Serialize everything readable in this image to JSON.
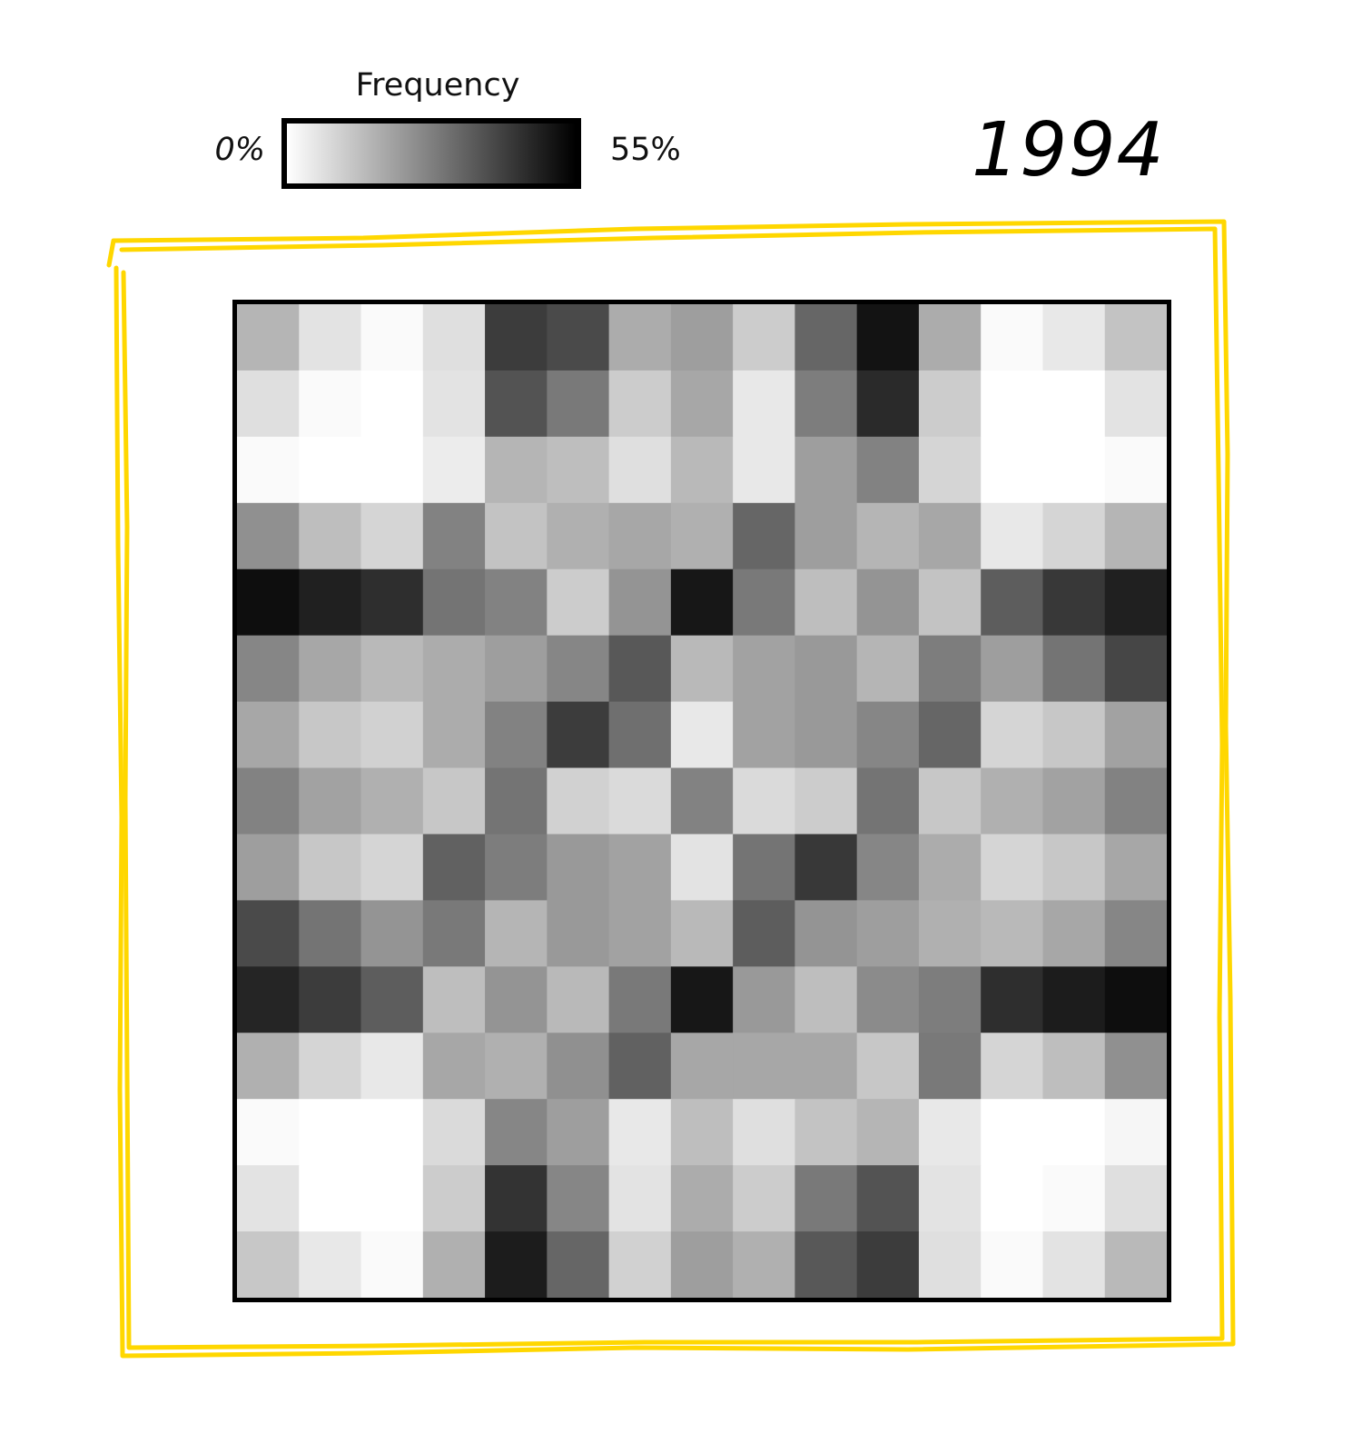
{
  "colorbar": {
    "title": "Frequency",
    "min_label": "0%",
    "max_label": "55%",
    "min_value": 0,
    "max_value": 55,
    "colormap": "gray_r"
  },
  "year_label": "1994",
  "annotation_color": "#FFD700",
  "chart_data": {
    "type": "heatmap",
    "title": "1994",
    "xlabel": "",
    "ylabel": "",
    "rows": 15,
    "cols": 15,
    "value_unit": "%",
    "value_range": [
      0,
      55
    ],
    "grid": false,
    "legend": "top-left",
    "values": [
      [
        16,
        6,
        1,
        7,
        42,
        39,
        18,
        21,
        11,
        33,
        51,
        18,
        1,
        5,
        13
      ],
      [
        7,
        1,
        0,
        6,
        37,
        29,
        11,
        19,
        5,
        28,
        46,
        11,
        0,
        0,
        6
      ],
      [
        1,
        0,
        0,
        4,
        16,
        14,
        7,
        15,
        5,
        21,
        27,
        9,
        0,
        0,
        1
      ],
      [
        24,
        14,
        9,
        27,
        13,
        17,
        19,
        17,
        33,
        21,
        16,
        19,
        5,
        9,
        16
      ],
      [
        52,
        48,
        45,
        30,
        27,
        11,
        23,
        50,
        29,
        14,
        23,
        13,
        35,
        43,
        48
      ],
      [
        26,
        19,
        15,
        18,
        21,
        26,
        36,
        15,
        20,
        22,
        16,
        28,
        21,
        30,
        40
      ],
      [
        19,
        12,
        10,
        18,
        27,
        42,
        31,
        5,
        20,
        22,
        26,
        33,
        9,
        12,
        20
      ],
      [
        27,
        20,
        17,
        12,
        30,
        10,
        8,
        27,
        8,
        11,
        30,
        12,
        17,
        20,
        27
      ],
      [
        21,
        12,
        9,
        34,
        28,
        22,
        20,
        6,
        30,
        43,
        26,
        18,
        9,
        12,
        19
      ],
      [
        39,
        30,
        23,
        29,
        16,
        22,
        20,
        15,
        35,
        23,
        21,
        17,
        15,
        19,
        26
      ],
      [
        47,
        42,
        35,
        14,
        23,
        15,
        29,
        50,
        22,
        14,
        25,
        28,
        45,
        49,
        52
      ],
      [
        17,
        9,
        5,
        19,
        17,
        24,
        34,
        19,
        19,
        19,
        12,
        29,
        9,
        14,
        24
      ],
      [
        1,
        0,
        0,
        8,
        26,
        21,
        5,
        14,
        7,
        13,
        16,
        5,
        0,
        0,
        2
      ],
      [
        6,
        0,
        0,
        11,
        44,
        26,
        6,
        18,
        11,
        29,
        37,
        6,
        0,
        1,
        7
      ],
      [
        12,
        5,
        1,
        17,
        49,
        33,
        10,
        21,
        17,
        36,
        42,
        7,
        1,
        6,
        15
      ]
    ]
  }
}
